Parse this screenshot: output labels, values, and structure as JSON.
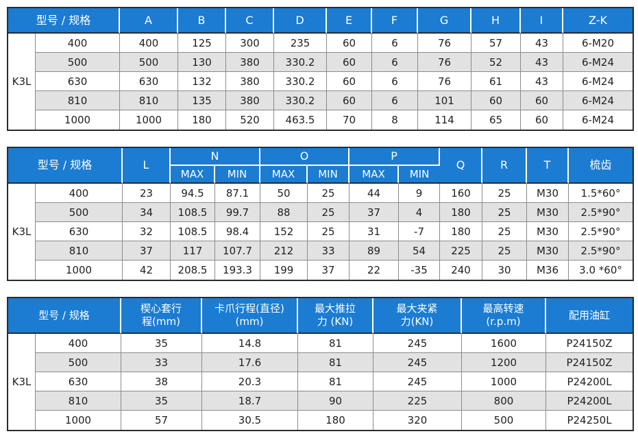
{
  "colors": {
    "header_bg": "#1b7cd2",
    "header_text": "#ffffff",
    "row_alt_bg": "#e2e2e2",
    "border_dark": "#2b2b2b",
    "border_light": "#8a8a8a",
    "body_text": "#1f1f1f"
  },
  "model_label": "K3L",
  "tables": [
    {
      "title": "dimensions",
      "header": {
        "model_spec": "型号 / 规格",
        "cols": [
          "A",
          "B",
          "C",
          "D",
          "E",
          "F",
          "G",
          "H",
          "I",
          "Z-K"
        ]
      },
      "rows": [
        {
          "spec": "400",
          "values": [
            "400",
            "125",
            "300",
            "235",
            "60",
            "6",
            "76",
            "57",
            "43",
            "6-M20"
          ]
        },
        {
          "spec": "500",
          "values": [
            "500",
            "130",
            "380",
            "330.2",
            "60",
            "6",
            "76",
            "52",
            "43",
            "6-M24"
          ]
        },
        {
          "spec": "630",
          "values": [
            "630",
            "132",
            "380",
            "330.2",
            "60",
            "6",
            "76",
            "61",
            "43",
            "6-M24"
          ]
        },
        {
          "spec": "810",
          "values": [
            "810",
            "135",
            "380",
            "330.2",
            "60",
            "6",
            "101",
            "60",
            "60",
            "6-M24"
          ]
        },
        {
          "spec": "1000",
          "values": [
            "1000",
            "180",
            "520",
            "463.5",
            "70",
            "8",
            "114",
            "65",
            "60",
            "6-M24"
          ]
        }
      ]
    },
    {
      "title": "travel",
      "header": {
        "model_spec": "型号 / 规格",
        "l": "L",
        "groups": [
          "N",
          "O",
          "P"
        ],
        "max": "MAX",
        "min": "MIN",
        "tail": [
          "Q",
          "R",
          "T",
          "梳齿"
        ]
      },
      "rows": [
        {
          "spec": "400",
          "values": [
            "23",
            "94.5",
            "87.1",
            "50",
            "25",
            "44",
            "9",
            "160",
            "25",
            "M30",
            "1.5*60°"
          ]
        },
        {
          "spec": "500",
          "values": [
            "34",
            "108.5",
            "99.7",
            "88",
            "25",
            "37",
            "4",
            "180",
            "25",
            "M30",
            "2.5*90°"
          ]
        },
        {
          "spec": "630",
          "values": [
            "32",
            "108.5",
            "98.4",
            "152",
            "25",
            "31",
            "-7",
            "180",
            "25",
            "M30",
            "2.5*90°"
          ]
        },
        {
          "spec": "810",
          "values": [
            "37",
            "117",
            "107.7",
            "212",
            "33",
            "89",
            "54",
            "225",
            "25",
            "M30",
            "2.5*90°"
          ]
        },
        {
          "spec": "1000",
          "values": [
            "42",
            "208.5",
            "193.3",
            "199",
            "37",
            "22",
            "-35",
            "240",
            "30",
            "M36",
            "3.0 *60°"
          ]
        }
      ]
    },
    {
      "title": "performance",
      "header": {
        "model_spec": "型号 / 规格",
        "cols": [
          "楔心套行\n程(mm)",
          "卡爪行程(直径)\n(mm)",
          "最大推拉\n力 (KN)",
          "最大夹紧\n力(KN)",
          "最高转速\n(r.p.m)",
          "配用油缸"
        ]
      },
      "rows": [
        {
          "spec": "400",
          "values": [
            "35",
            "14.8",
            "81",
            "245",
            "1600",
            "P24150Z"
          ]
        },
        {
          "spec": "500",
          "values": [
            "33",
            "17.6",
            "81",
            "245",
            "1200",
            "P24150Z"
          ]
        },
        {
          "spec": "630",
          "values": [
            "38",
            "20.3",
            "81",
            "245",
            "1000",
            "P24200L"
          ]
        },
        {
          "spec": "810",
          "values": [
            "35",
            "18.7",
            "90",
            "225",
            "800",
            "P24200L"
          ]
        },
        {
          "spec": "1000",
          "values": [
            "57",
            "30.5",
            "180",
            "320",
            "500",
            "P24250L"
          ]
        }
      ]
    }
  ]
}
